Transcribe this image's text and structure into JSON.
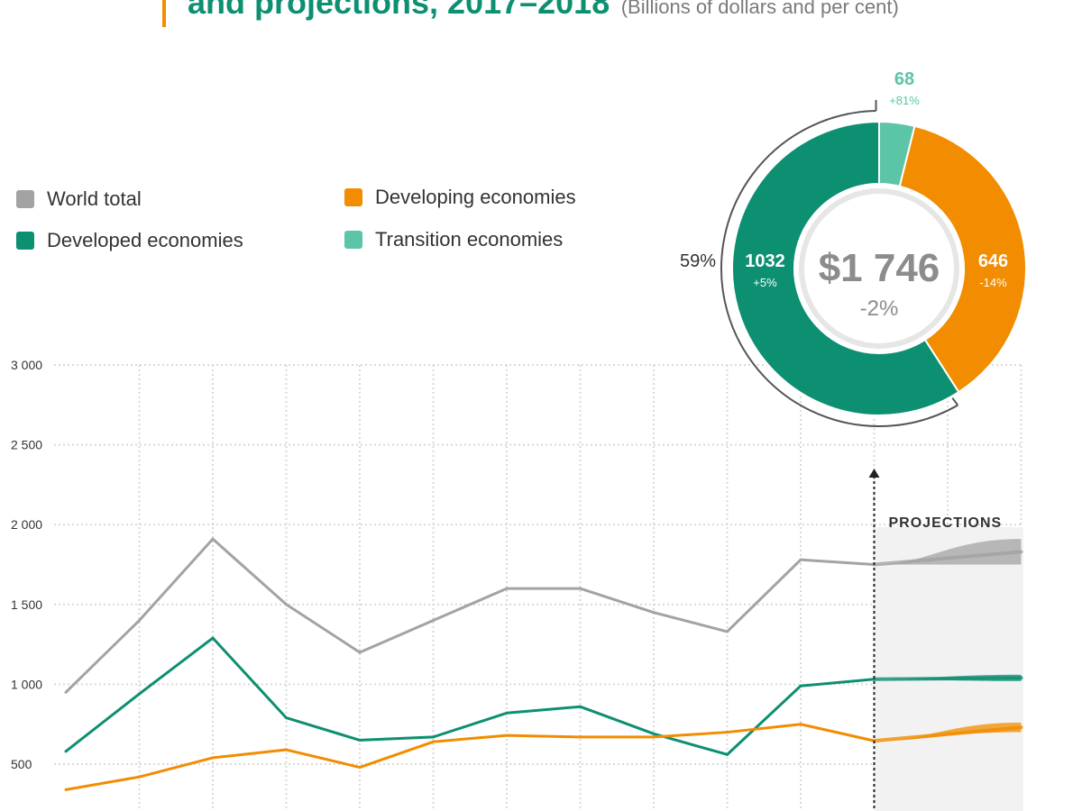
{
  "title": {
    "main": "and projections, 2017–2018",
    "sub": "(Billions of dollars and per cent)"
  },
  "legend": [
    {
      "label": "World total",
      "color": "#a3a3a3"
    },
    {
      "label": "Developed economies",
      "color": "#0d8f72"
    },
    {
      "label": "Developing economies",
      "color": "#f28c00"
    },
    {
      "label": "Transition economies",
      "color": "#5cc4a7"
    }
  ],
  "donut": {
    "total_label": "$1 746",
    "total_change": "-2%",
    "share_label": "59%",
    "segments": [
      {
        "name": "Transition economies",
        "value": 68,
        "value_label": "68",
        "change": "+81%",
        "color": "#5cc4a7"
      },
      {
        "name": "Developing economies",
        "value": 646,
        "value_label": "646",
        "change": "-14%",
        "color": "#f28c00"
      },
      {
        "name": "Developed economies",
        "value": 1032,
        "value_label": "1032",
        "change": "+5%",
        "color": "#0d8f72"
      }
    ]
  },
  "projections_label": "PROJECTIONS",
  "chart_data": {
    "type": "line",
    "ylim": [
      500,
      3000
    ],
    "yticks": [
      500,
      1000,
      1500,
      2000,
      2500,
      3000
    ],
    "ytick_labels": [
      "500",
      "1 000",
      "1 500",
      "2 000",
      "2 500",
      "3 000"
    ],
    "x": [
      0,
      1,
      2,
      3,
      4,
      5,
      6,
      7,
      8,
      9,
      10,
      11
    ],
    "projection_start_index": 11,
    "series": [
      {
        "name": "World total",
        "color": "#a3a3a3",
        "values": [
          950,
          1400,
          1910,
          1500,
          1200,
          1400,
          1600,
          1600,
          1450,
          1330,
          1780,
          1750
        ]
      },
      {
        "name": "Developed economies",
        "color": "#0d8f72",
        "values": [
          580,
          940,
          1290,
          790,
          650,
          670,
          820,
          860,
          690,
          560,
          990,
          1032
        ]
      },
      {
        "name": "Developing economies",
        "color": "#f28c00",
        "values": [
          340,
          420,
          540,
          590,
          480,
          640,
          680,
          670,
          670,
          700,
          750,
          646
        ]
      }
    ],
    "projection_band": {
      "World total": {
        "from": [
          1750,
          1750
        ],
        "to": [
          1750,
          1910
        ]
      },
      "Developed economies": {
        "from": [
          1032,
          1032
        ],
        "to": [
          1020,
          1060
        ]
      },
      "Developing economies": {
        "from": [
          646,
          646
        ],
        "to": [
          700,
          760
        ]
      }
    }
  }
}
